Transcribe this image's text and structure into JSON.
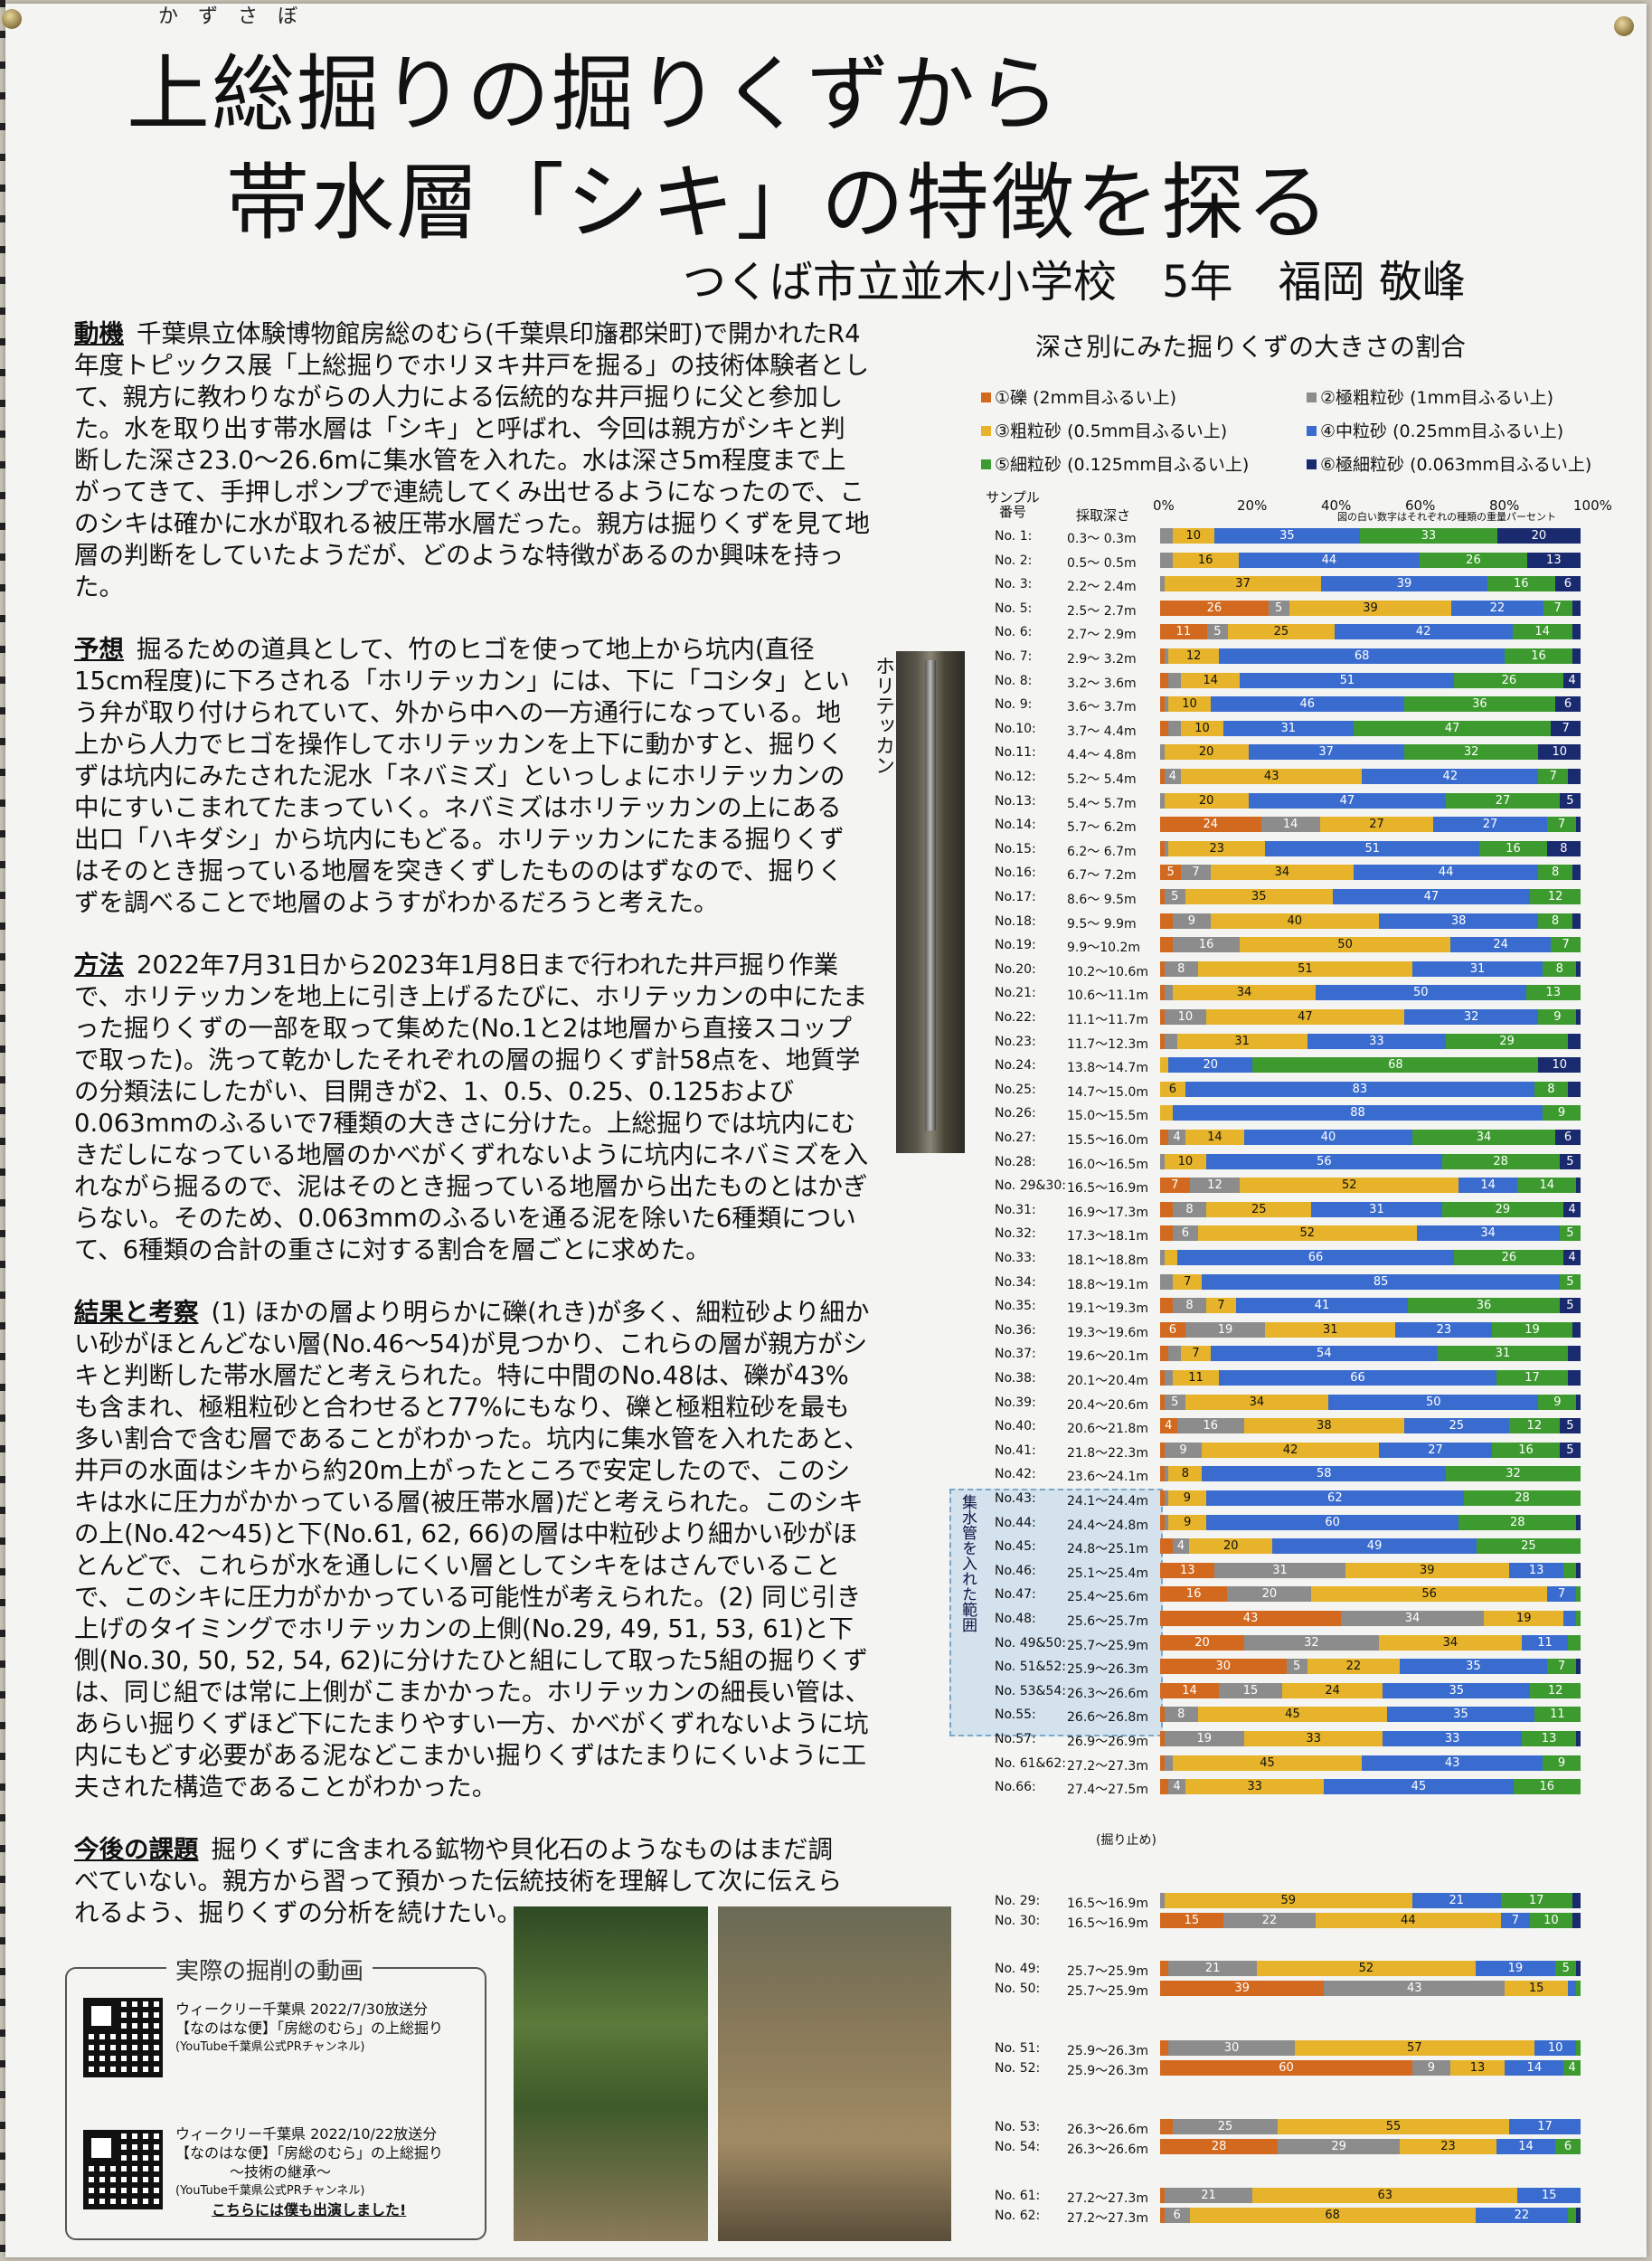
{
  "title": {
    "ruby": "かずさぼ",
    "line1": "上総掘りの掘りくずから",
    "line2": "帯水層「シキ」の特徴を探る",
    "school": "つくば市立並木小学校",
    "grade": "5年",
    "name": "福岡 敬峰"
  },
  "sections": {
    "motive_head": "動機",
    "motive": "千葉県立体験博物館房総のむら(千葉県印旛郡栄町)で開かれたR4年度トピックス展「上総掘りでホリヌキ井戸を掘る」の技術体験者として、親方に教わりながらの人力による伝統的な井戸掘りに父と参加した。水を取り出す帯水層は「シキ」と呼ばれ、今回は親方がシキと判断した深さ23.0～26.6mに集水管を入れた。水は深さ5m程度まで上がってきて、手押しポンプで連続してくみ出せるようになったので、このシキは確かに水が取れる被圧帯水層だった。親方は掘りくずを見て地層の判断をしていたようだが、どのような特徴があるのか興味を持った。",
    "hypo_head": "予想",
    "hypo": "掘るための道具として、竹のヒゴを使って地上から坑内(直径15cm程度)に下ろされる「ホリテッカン」には、下に「コシタ」という弁が取り付けられていて、外から中への一方通行になっている。地上から人力でヒゴを操作してホリテッカンを上下に動かすと、掘りくずは坑内にみたされた泥水「ネバミズ」といっしょにホリテッカンの中にすいこまれてたまっていく。ネバミズはホリテッカンの上にある出口「ハキダシ」から坑内にもどる。ホリテッカンにたまる掘りくずはそのとき掘っている地層を突きくずしたもののはずなので、掘りくずを調べることで地層のようすがわかるだろうと考えた。",
    "method_head": "方法",
    "method": "2022年7月31日から2023年1月8日まで行われた井戸掘り作業で、ホリテッカンを地上に引き上げるたびに、ホリテッカンの中にたまった掘りくずの一部を取って集めた(No.1と2は地層から直接スコップで取った)。洗って乾かしたそれぞれの層の掘りくず計58点を、地質学の分類法にしたがい、目開きが2、1、0.5、0.25、0.125および0.063mmのふるいで7種類の大きさに分けた。上総掘りでは坑内にむきだしになっている地層のかべがくずれないように坑内にネバミズを入れながら掘るので、泥はそのとき掘っている地層から出たものとはかぎらない。そのため、0.063mmのふるいを通る泥を除いた6種類について、6種類の合計の重さに対する割合を層ごとに求めた。",
    "result_head": "結果と考察",
    "result": "(1) ほかの層より明らかに礫(れき)が多く、細粒砂より細かい砂がほとんどない層(No.46～54)が見つかり、これらの層が親方がシキと判断した帯水層だと考えられた。特に中間のNo.48は、礫が43%も含まれ、極粗粒砂と合わせると77%にもなり、礫と極粗粒砂を最も多い割合で含む層であることがわかった。坑内に集水管を入れたあと、井戸の水面はシキから約20m上がったところで安定したので、このシキは水に圧力がかかっている層(被圧帯水層)だと考えられた。このシキの上(No.42～45)と下(No.61, 62, 66)の層は中粒砂より細かい砂がほとんどで、これらが水を通しにくい層としてシキをはさんでいることで、このシキに圧力がかかっている可能性が考えられた。(2) 同じ引き上げのタイミングでホリテッカンの上側(No.29, 49, 51, 53, 61)と下側(No.30, 50, 52, 54, 62)に分けたひと組にして取った5組の掘りくずは、同じ組では常に上側がこまかかった。ホリテッカンの細長い管は、あらい掘りくずほど下にたまりやすい一方、かべがくずれないように坑内にもどす必要がある泥などこまかい掘りくずはたまりにくいように工夫された構造であることがわかった。",
    "future_head": "今後の課題",
    "future": "掘りくずに含まれる鉱物や貝化石のようなものはまだ調べていない。親方から習って預かった伝統技術を理解して次に伝えられるよう、掘りくずの分析を続けたい。"
  },
  "tool_label": "ホリテッカン",
  "video": {
    "title": "実際の掘削の動画",
    "v1_line1": "ウィークリー千葉県 2022/7/30放送分",
    "v1_line2": "【なのはな便】「房総のむら」の上総掘り",
    "v1_line3": "(YouTube千葉県公式PRチャンネル)",
    "v2_line1": "ウィークリー千葉県 2022/10/22放送分",
    "v2_line2": "【なのはな便】「房総のむら」の上総掘り",
    "v2_line3": "～技術の継承～",
    "v2_line4": "(YouTube千葉県公式PRチャンネル)",
    "v2_line5": "こちらには僕も出演しました!"
  },
  "chart_data": {
    "type": "bar",
    "title": "深さ別にみた掘りくずの大きさの割合",
    "legend": [
      {
        "name": "①礫 (2mm目ふるい上)",
        "color": "#d2691e"
      },
      {
        "name": "②極粗粒砂 (1mm目ふるい上)",
        "color": "#8c8c8c"
      },
      {
        "name": "③粗粒砂 (0.5mm目ふるい上)",
        "color": "#e6b32a"
      },
      {
        "name": "④中粒砂 (0.25mm目ふるい上)",
        "color": "#3a6ccf"
      },
      {
        "name": "⑤細粒砂 (0.125mm目ふるい上)",
        "color": "#3c9a2e"
      },
      {
        "name": "⑥極細粒砂 (0.063mm目ふるい上)",
        "color": "#1a2a6e"
      }
    ],
    "col_sample": "サンプル番号",
    "col_depth": "採取深さ",
    "note": "図の白い数字はそれぞれの種類の重量パーセント",
    "ticks": [
      "0%",
      "20%",
      "40%",
      "60%",
      "80%",
      "100%"
    ],
    "aquifer_label": "集水管を入れた範囲",
    "stop_note": "(掘り止め)",
    "rows": [
      {
        "no": "No. 1:",
        "depth": "0.3～ 0.3m",
        "v": [
          0,
          3,
          10,
          35,
          33,
          20
        ]
      },
      {
        "no": "No. 2:",
        "depth": "0.5～ 0.5m",
        "v": [
          0,
          3,
          16,
          44,
          26,
          13
        ]
      },
      {
        "no": "No. 3:",
        "depth": "2.2～ 2.4m",
        "v": [
          0,
          1,
          37,
          39,
          16,
          6
        ]
      },
      {
        "no": "No. 5:",
        "depth": "2.5～ 2.7m",
        "v": [
          26,
          5,
          39,
          22,
          7,
          2
        ]
      },
      {
        "no": "No. 6:",
        "depth": "2.7～ 2.9m",
        "v": [
          11,
          5,
          25,
          42,
          14,
          2
        ]
      },
      {
        "no": "No. 7:",
        "depth": "2.9～ 3.2m",
        "v": [
          1,
          1,
          12,
          68,
          16,
          2
        ]
      },
      {
        "no": "No. 8:",
        "depth": "3.2～ 3.6m",
        "v": [
          2,
          3,
          14,
          51,
          26,
          4
        ]
      },
      {
        "no": "No. 9:",
        "depth": "3.6～ 3.7m",
        "v": [
          1,
          1,
          10,
          46,
          36,
          6
        ]
      },
      {
        "no": "No.10:",
        "depth": "3.7～ 4.4m",
        "v": [
          2,
          3,
          10,
          31,
          47,
          7
        ]
      },
      {
        "no": "No.11:",
        "depth": "4.4～ 4.8m",
        "v": [
          0,
          1,
          20,
          37,
          32,
          10
        ]
      },
      {
        "no": "No.12:",
        "depth": "5.2～ 5.4m",
        "v": [
          1,
          4,
          43,
          42,
          7,
          3
        ]
      },
      {
        "no": "No.13:",
        "depth": "5.4～ 5.7m",
        "v": [
          0,
          1,
          20,
          47,
          27,
          5
        ]
      },
      {
        "no": "No.14:",
        "depth": "5.7～ 6.2m",
        "v": [
          24,
          14,
          27,
          27,
          7,
          1
        ]
      },
      {
        "no": "No.15:",
        "depth": "6.2～ 6.7m",
        "v": [
          1,
          1,
          23,
          51,
          16,
          8
        ]
      },
      {
        "no": "No.16:",
        "depth": "6.7～ 7.2m",
        "v": [
          5,
          7,
          34,
          44,
          8,
          2
        ]
      },
      {
        "no": "No.17:",
        "depth": "8.6～ 9.5m",
        "v": [
          1,
          5,
          35,
          47,
          12,
          0
        ]
      },
      {
        "no": "No.18:",
        "depth": "9.5～ 9.9m",
        "v": [
          3,
          9,
          40,
          38,
          8,
          2
        ]
      },
      {
        "no": "No.19:",
        "depth": "9.9～10.2m",
        "v": [
          3,
          16,
          50,
          24,
          7,
          0
        ]
      },
      {
        "no": "No.20:",
        "depth": "10.2～10.6m",
        "v": [
          1,
          8,
          51,
          31,
          8,
          1
        ]
      },
      {
        "no": "No.21:",
        "depth": "10.6～11.1m",
        "v": [
          1,
          2,
          34,
          50,
          13,
          0
        ]
      },
      {
        "no": "No.22:",
        "depth": "11.1～11.7m",
        "v": [
          1,
          10,
          47,
          32,
          9,
          1
        ]
      },
      {
        "no": "No.23:",
        "depth": "11.7～12.3m",
        "v": [
          1,
          3,
          31,
          33,
          29,
          3
        ]
      },
      {
        "no": "No.24:",
        "depth": "13.8～14.7m",
        "v": [
          0,
          0,
          2,
          20,
          68,
          10
        ]
      },
      {
        "no": "No.25:",
        "depth": "14.7～15.0m",
        "v": [
          0,
          0,
          6,
          83,
          8,
          3
        ]
      },
      {
        "no": "No.26:",
        "depth": "15.0～15.5m",
        "v": [
          0,
          0,
          3,
          88,
          9,
          0
        ]
      },
      {
        "no": "No.27:",
        "depth": "15.5～16.0m",
        "v": [
          2,
          4,
          14,
          40,
          34,
          6
        ]
      },
      {
        "no": "No.28:",
        "depth": "16.0～16.5m",
        "v": [
          0,
          1,
          10,
          56,
          28,
          5
        ]
      },
      {
        "no": "No. 29&30:",
        "depth": "16.5～16.9m",
        "v": [
          7,
          12,
          52,
          14,
          14,
          1
        ]
      },
      {
        "no": "No.31:",
        "depth": "16.9～17.3m",
        "v": [
          3,
          8,
          25,
          31,
          29,
          4
        ]
      },
      {
        "no": "No.32:",
        "depth": "17.3～18.1m",
        "v": [
          3,
          6,
          52,
          34,
          5,
          0
        ]
      },
      {
        "no": "No.33:",
        "depth": "18.1～18.8m",
        "v": [
          0,
          1,
          3,
          66,
          26,
          4
        ]
      },
      {
        "no": "No.34:",
        "depth": "18.8～19.1m",
        "v": [
          0,
          3,
          7,
          85,
          5,
          0
        ]
      },
      {
        "no": "No.35:",
        "depth": "19.1～19.3m",
        "v": [
          3,
          8,
          7,
          41,
          36,
          5
        ]
      },
      {
        "no": "No.36:",
        "depth": "19.3～19.6m",
        "v": [
          6,
          19,
          31,
          23,
          19,
          2
        ]
      },
      {
        "no": "No.37:",
        "depth": "19.6～20.1m",
        "v": [
          2,
          3,
          7,
          54,
          31,
          3
        ]
      },
      {
        "no": "No.38:",
        "depth": "20.1～20.4m",
        "v": [
          1,
          2,
          11,
          66,
          17,
          3
        ]
      },
      {
        "no": "No.39:",
        "depth": "20.4～20.6m",
        "v": [
          1,
          5,
          34,
          50,
          9,
          1
        ]
      },
      {
        "no": "No.40:",
        "depth": "20.6～21.8m",
        "v": [
          4,
          16,
          38,
          25,
          12,
          5
        ]
      },
      {
        "no": "No.41:",
        "depth": "21.8～22.3m",
        "v": [
          1,
          9,
          42,
          27,
          16,
          5
        ]
      },
      {
        "no": "No.42:",
        "depth": "23.6～24.1m",
        "v": [
          1,
          1,
          8,
          58,
          32,
          0
        ]
      },
      {
        "no": "No.43:",
        "depth": "24.1～24.4m",
        "v": [
          1,
          1,
          9,
          62,
          28,
          0
        ]
      },
      {
        "no": "No.44:",
        "depth": "24.4～24.8m",
        "v": [
          1,
          1,
          9,
          60,
          28,
          1
        ]
      },
      {
        "no": "No.45:",
        "depth": "24.8～25.1m",
        "v": [
          3,
          4,
          20,
          49,
          25,
          0
        ]
      },
      {
        "no": "No.46:",
        "depth": "25.1～25.4m",
        "v": [
          13,
          31,
          39,
          13,
          3,
          1
        ]
      },
      {
        "no": "No.47:",
        "depth": "25.4～25.6m",
        "v": [
          16,
          20,
          56,
          7,
          1,
          0
        ]
      },
      {
        "no": "No.48:",
        "depth": "25.6～25.7m",
        "v": [
          43,
          34,
          19,
          3,
          1,
          0
        ]
      },
      {
        "no": "No. 49&50:",
        "depth": "25.7～25.9m",
        "v": [
          20,
          32,
          34,
          11,
          3,
          0
        ]
      },
      {
        "no": "No. 51&52:",
        "depth": "25.9～26.3m",
        "v": [
          30,
          5,
          22,
          35,
          7,
          1
        ]
      },
      {
        "no": "No. 53&54:",
        "depth": "26.3～26.6m",
        "v": [
          14,
          15,
          24,
          35,
          12,
          0
        ]
      },
      {
        "no": "No.55:",
        "depth": "26.6～26.8m",
        "v": [
          1,
          8,
          45,
          35,
          11,
          0
        ]
      },
      {
        "no": "No.57:",
        "depth": "26.9～26.9m",
        "v": [
          1,
          19,
          33,
          33,
          13,
          1
        ]
      },
      {
        "no": "No. 61&62:",
        "depth": "27.2～27.3m",
        "v": [
          1,
          2,
          45,
          43,
          9,
          0
        ]
      },
      {
        "no": "No.66:",
        "depth": "27.4～27.5m",
        "v": [
          2,
          4,
          33,
          45,
          16,
          0
        ]
      }
    ],
    "pairs": [
      {
        "no": "No. 29:",
        "depth": "16.5～16.9m",
        "v": [
          0,
          1,
          59,
          21,
          17,
          2
        ]
      },
      {
        "no": "No. 30:",
        "depth": "16.5～16.9m",
        "v": [
          15,
          22,
          44,
          7,
          10,
          2
        ]
      },
      {
        "no": "No. 49:",
        "depth": "25.7～25.9m",
        "v": [
          2,
          21,
          52,
          19,
          5,
          1
        ]
      },
      {
        "no": "No. 50:",
        "depth": "25.7～25.9m",
        "v": [
          39,
          43,
          15,
          2,
          1,
          0
        ]
      },
      {
        "no": "No. 51:",
        "depth": "25.9～26.3m",
        "v": [
          2,
          30,
          57,
          10,
          1,
          0
        ]
      },
      {
        "no": "No. 52:",
        "depth": "25.9～26.3m",
        "v": [
          60,
          9,
          13,
          14,
          4,
          0
        ]
      },
      {
        "no": "No. 53:",
        "depth": "26.3～26.6m",
        "v": [
          3,
          25,
          55,
          17,
          0,
          0
        ]
      },
      {
        "no": "No. 54:",
        "depth": "26.3～26.6m",
        "v": [
          28,
          29,
          23,
          14,
          6,
          0
        ]
      },
      {
        "no": "No. 61:",
        "depth": "27.2～27.3m",
        "v": [
          1,
          21,
          63,
          15,
          0,
          0
        ]
      },
      {
        "no": "No. 62:",
        "depth": "27.2～27.3m",
        "v": [
          1,
          6,
          68,
          22,
          2,
          1
        ]
      }
    ]
  }
}
